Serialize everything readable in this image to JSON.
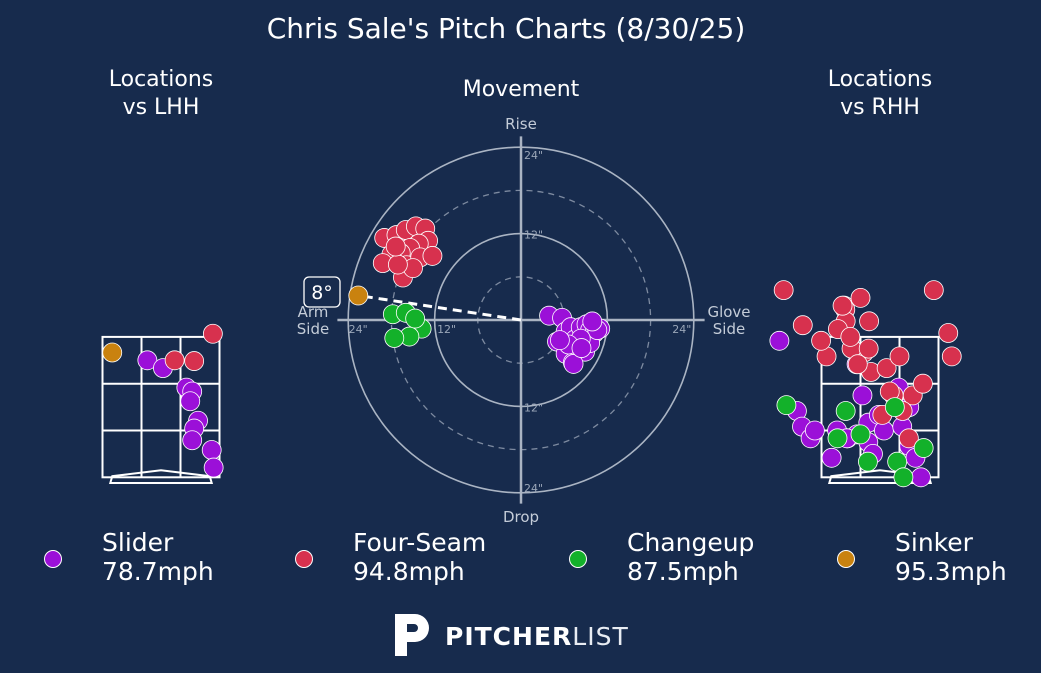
{
  "colors": {
    "background": "#172b4d",
    "slider": "#9b10d8",
    "four_seam": "#d7314e",
    "changeup": "#13b12a",
    "sinker": "#c9820f",
    "lines": "#ffffff",
    "polar_lines": "#aab4c3"
  },
  "chart_data": [
    {
      "type": "scatter",
      "panel": "locations_lhh",
      "title": "Locations\nvs LHH",
      "series": [
        {
          "name": "Slider",
          "x": [
            -0.35,
            0.05,
            0.65,
            0.8,
            0.75,
            0.95,
            0.85,
            0.8,
            1.3,
            1.35
          ],
          "y": [
            3.3,
            3.1,
            2.6,
            2.5,
            2.25,
            1.75,
            1.55,
            1.25,
            1.0,
            0.55
          ]
        },
        {
          "name": "Four-Seam",
          "x": [
            0.35,
            0.85,
            1.33
          ],
          "y": [
            3.3,
            3.28,
            3.98
          ]
        },
        {
          "name": "Sinker",
          "x": [
            -1.25
          ],
          "y": [
            3.5
          ]
        }
      ]
    },
    {
      "type": "scatter",
      "panel": "movement",
      "title": "Movement",
      "axis_labels": {
        "top": "Rise",
        "bottom": "Drop",
        "left": "Arm\nSide",
        "right": "Glove\nSide"
      },
      "ring_labels": [
        "12\"",
        "24\"",
        "12\"",
        "24\"",
        "12\"",
        "24\"",
        "12\"",
        "24\""
      ],
      "arm_angle": "8°",
      "series": [
        {
          "name": "Slider",
          "x": [
            3.9,
            5.7,
            6.2,
            6.9,
            7.5,
            8.3,
            9.1,
            9.6,
            10.2,
            11.0,
            5.0,
            6.2,
            7.7,
            7.2,
            8.9,
            9.6,
            10.6,
            9.9,
            8.3,
            6.6,
            7.3,
            8.4,
            5.4
          ],
          "y": [
            0.6,
            0.3,
            -1.6,
            -1.0,
            -2.7,
            -1.0,
            -0.6,
            -1.4,
            -1.8,
            -1.2,
            -3.0,
            -4.7,
            -3.8,
            -5.9,
            -4.4,
            -3.2,
            -1.4,
            -0.2,
            -2.6,
            -3.4,
            -6.1,
            -3.9,
            -2.8
          ]
        },
        {
          "name": "Four-Seam",
          "x": [
            -19.0,
            -17.3,
            -16.0,
            -14.6,
            -13.3,
            -12.9,
            -14.2,
            -15.4,
            -16.7,
            -18.0,
            -19.2,
            -15.9,
            -14.0,
            -12.3,
            -16.4,
            -15.0,
            -17.1,
            -17.4
          ],
          "y": [
            11.4,
            11.8,
            12.5,
            13.0,
            12.7,
            11.0,
            10.6,
            10.0,
            9.3,
            9.1,
            7.9,
            7.6,
            8.7,
            8.9,
            5.9,
            7.2,
            7.7,
            10.2
          ]
        },
        {
          "name": "Changeup",
          "x": [
            -17.8,
            -16.0,
            -13.8,
            -15.5,
            -17.6,
            -14.7
          ],
          "y": [
            0.8,
            1.0,
            -1.2,
            -2.3,
            -2.5,
            0.2
          ]
        },
        {
          "name": "Sinker",
          "x": [
            -22.6
          ],
          "y": [
            3.4
          ]
        }
      ]
    },
    {
      "type": "scatter",
      "panel": "locations_rhh",
      "title": "Locations\nvs RHH",
      "series": [
        {
          "name": "Slider",
          "x": [
            -2.58,
            -2.13,
            -2.0,
            -1.78,
            -1.67,
            -1.24,
            -0.83,
            -0.59,
            -0.3,
            -0.03,
            0.1,
            0.36,
            0.48,
            0.57,
            0.75,
            0.75,
            0.91,
            1.05,
            -0.6,
            -0.3,
            -0.18,
            -1.1,
            -0.85,
            -0.45
          ],
          "y": [
            3.8,
            2.0,
            1.6,
            1.3,
            1.5,
            0.8,
            1.3,
            1.4,
            1.7,
            1.9,
            1.5,
            2.4,
            2.6,
            1.6,
            2.1,
            1.1,
            0.8,
            0.3,
            3.2,
            1.2,
            0.9,
            1.5,
            1.3,
            2.4
          ]
        },
        {
          "name": "Four-Seam",
          "x": [
            -2.47,
            -1.98,
            -1.37,
            -0.92,
            -0.89,
            -0.5,
            -0.28,
            -0.41,
            -0.23,
            0.17,
            0.5,
            0.84,
            1.1,
            1.38,
            1.75,
            1.84,
            -1.51,
            -0.73,
            -0.57,
            -0.88,
            -0.96,
            -1.08,
            -0.76,
            -0.29,
            0.35,
            0.58,
            0.06,
            0.25,
            0.74
          ],
          "y": [
            5.1,
            4.2,
            3.4,
            4.7,
            4.6,
            4.9,
            4.3,
            3.5,
            3.0,
            3.1,
            3.4,
            2.4,
            2.7,
            5.1,
            4.0,
            3.4,
            3.8,
            3.6,
            3.2,
            4.3,
            4.7,
            4.1,
            3.9,
            3.6,
            2.4,
            2.0,
            1.9,
            2.5,
            1.3
          ]
        },
        {
          "name": "Changeup",
          "x": [
            -2.4,
            -1.09,
            -0.88,
            -0.5,
            -0.31,
            0.38,
            1.12,
            0.44,
            0.6
          ],
          "y": [
            2.15,
            1.3,
            2.0,
            1.4,
            0.7,
            2.1,
            1.05,
            0.7,
            0.3
          ]
        }
      ]
    }
  ],
  "title": "Chris Sale's Pitch Charts (8/30/25)",
  "legend": [
    {
      "name": "Slider",
      "speed": "78.7mph",
      "color": "#9b10d8"
    },
    {
      "name": "Four-Seam",
      "speed": "94.8mph",
      "color": "#d7314e"
    },
    {
      "name": "Changeup",
      "speed": "87.5mph",
      "color": "#13b12a"
    },
    {
      "name": "Sinker",
      "speed": "95.3mph",
      "color": "#c9820f"
    }
  ],
  "logo": {
    "bold": "PITCHER",
    "light": "LIST",
    "icon": "pitcherlist-p-icon"
  }
}
